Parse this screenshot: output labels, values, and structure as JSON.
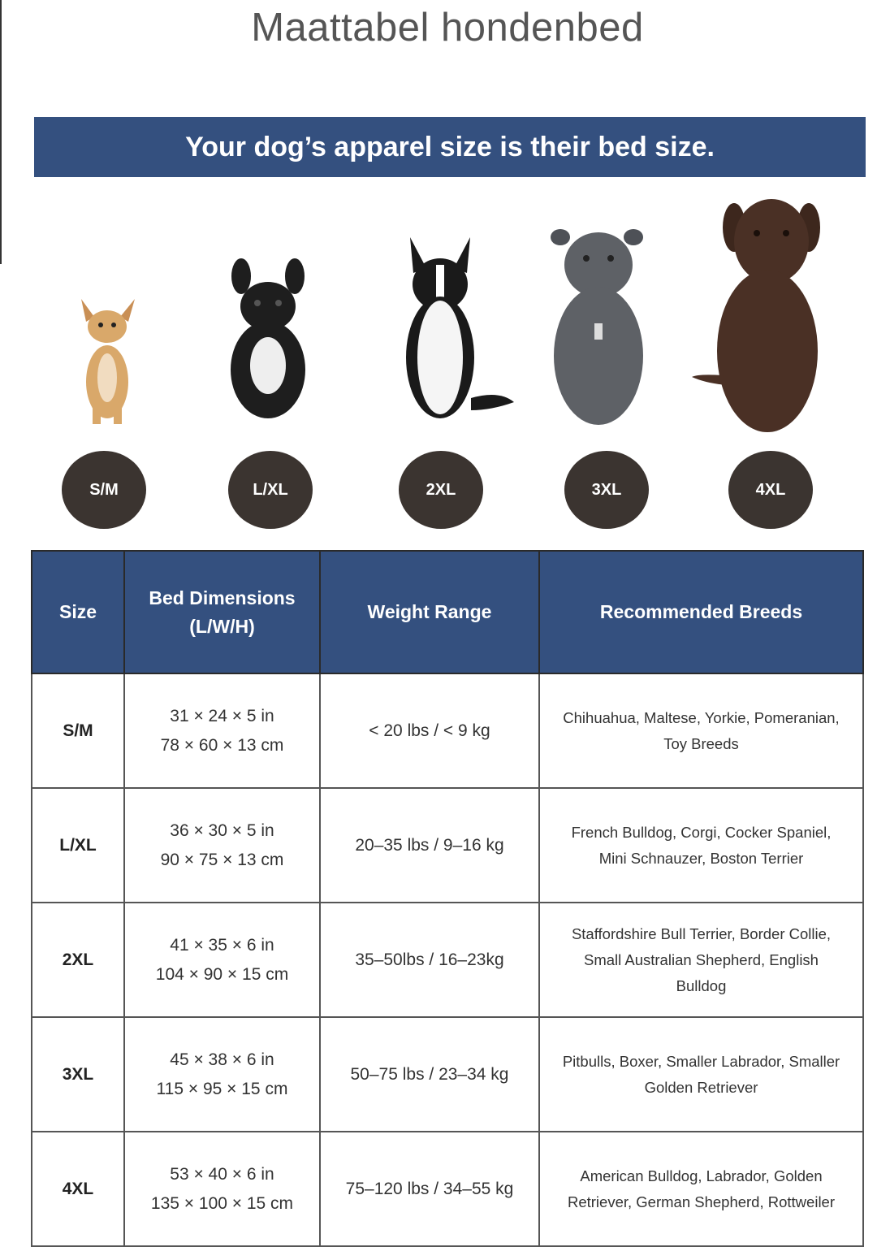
{
  "title": "Maattabel hondenbed",
  "banner": "Your dog’s apparel size is their bed size.",
  "accent_color": "#34507f",
  "badge_color": "#3b3430",
  "dogs": [
    {
      "size": "S/M",
      "image": "chihuahua-photo"
    },
    {
      "size": "L/XL",
      "image": "french-bulldog-photo"
    },
    {
      "size": "2XL",
      "image": "border-collie-photo"
    },
    {
      "size": "3XL",
      "image": "pitbull-photo"
    },
    {
      "size": "4XL",
      "image": "labrador-photo"
    }
  ],
  "table": {
    "headers": {
      "size": "Size",
      "dims_1": "Bed Dimensions",
      "dims_2": "(L/W/H)",
      "weight": "Weight Range",
      "breeds": "Recommended Breeds"
    },
    "rows": [
      {
        "size": "S/M",
        "in": "31 × 24 × 5 in",
        "cm": "78 × 60 × 13 cm",
        "weight": "< 20 lbs / < 9 kg",
        "breeds": "Chihuahua, Maltese, Yorkie, Pomeranian, Toy Breeds"
      },
      {
        "size": "L/XL",
        "in": "36 × 30 × 5 in",
        "cm": "90 × 75 × 13 cm",
        "weight": "20–35 lbs / 9–16 kg",
        "breeds": "French Bulldog, Corgi, Cocker Spaniel, Mini Schnauzer, Boston Terrier"
      },
      {
        "size": "2XL",
        "in": "41 × 35 × 6 in",
        "cm": "104 × 90 × 15 cm",
        "weight": "35–50lbs / 16–23kg",
        "breeds": "Staffordshire Bull Terrier, Border Collie, Small Australian Shepherd, English Bulldog"
      },
      {
        "size": "3XL",
        "in": "45 × 38 × 6 in",
        "cm": "115 × 95 × 15 cm",
        "weight": "50–75 lbs / 23–34 kg",
        "breeds": "Pitbulls, Boxer, Smaller Labrador, Smaller Golden Retriever"
      },
      {
        "size": "4XL",
        "in": "53 × 40 × 6 in",
        "cm": "135 × 100 × 15 cm",
        "weight": "75–120 lbs / 34–55 kg",
        "breeds": "American Bulldog, Labrador, Golden Retriever, German Shepherd, Rottweiler"
      }
    ]
  }
}
